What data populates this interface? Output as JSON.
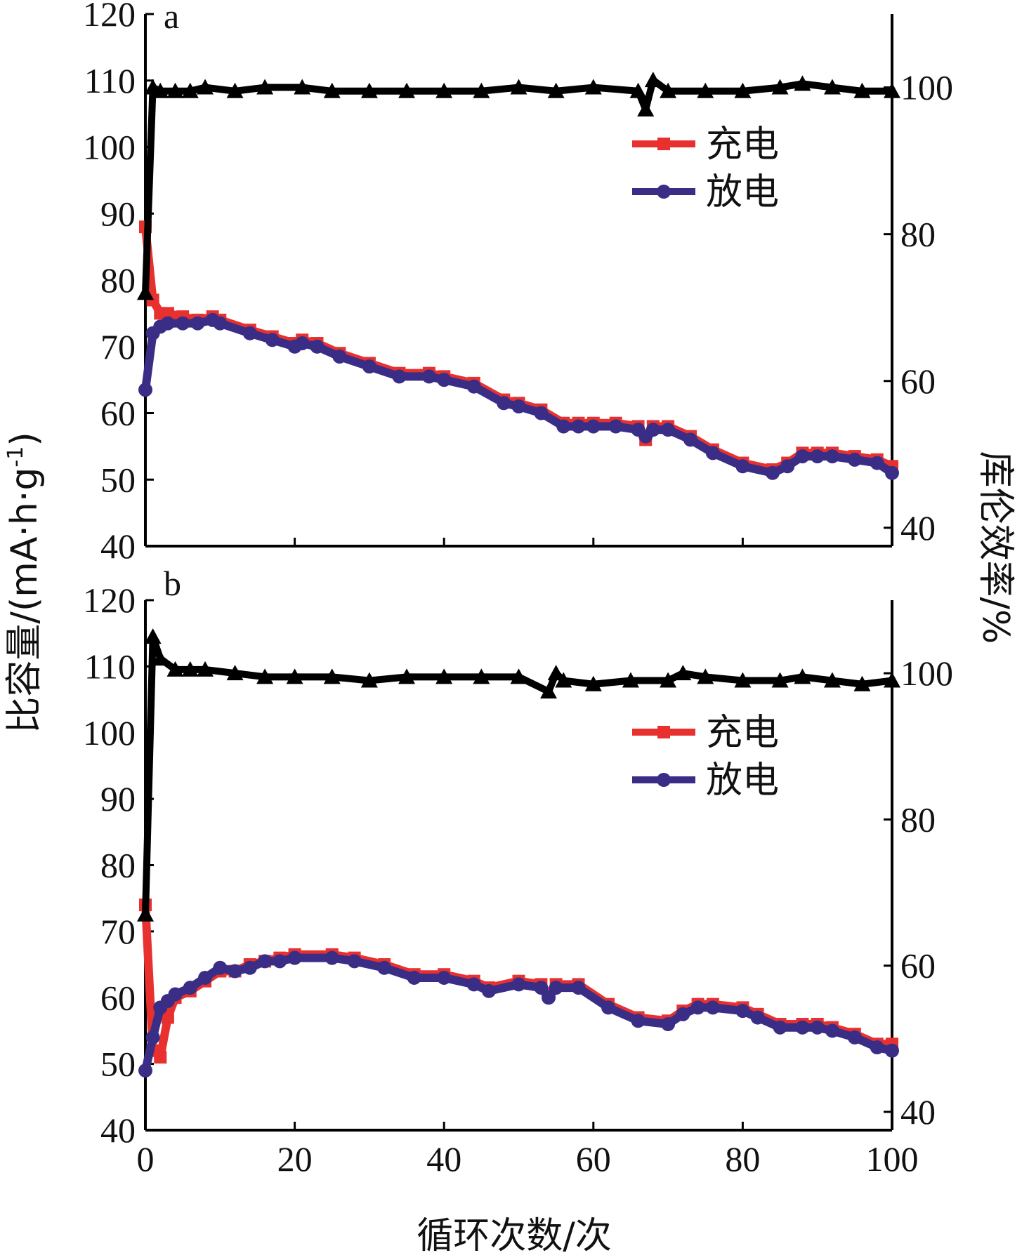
{
  "chart_data": {
    "type": "line",
    "xlabel": "循环次数/次",
    "ylabel_left": "比容量/(mA·h·g-1)",
    "ylabel_left_parts": [
      "比容量/(mA·h·g",
      "-1",
      ")"
    ],
    "ylabel_right": "库伦效率/%",
    "xlim": [
      0,
      100
    ],
    "xticks": [
      0,
      20,
      40,
      60,
      80,
      100
    ],
    "left_ylim": [
      40,
      120
    ],
    "left_yticks": [
      40,
      50,
      60,
      70,
      80,
      90,
      100,
      110,
      120
    ],
    "right_ylim": [
      37.5,
      110
    ],
    "right_yticks": [
      40,
      60,
      80,
      100
    ],
    "legend": {
      "placement": "upper-right",
      "entries": [
        "充电",
        "放电"
      ]
    },
    "colors": {
      "charge": "#e8312f",
      "discharge": "#3a2d86",
      "efficiency": "#000000",
      "axis": "#000000"
    },
    "panels": [
      {
        "label": "a",
        "series": [
          {
            "name": "充电",
            "axis": "left",
            "marker": "square",
            "x": [
              0,
              1,
              2,
              3,
              5,
              7,
              9,
              10,
              14,
              17,
              20,
              21,
              23,
              26,
              30,
              34,
              38,
              40,
              44,
              48,
              50,
              53,
              56,
              58,
              60,
              63,
              66,
              67,
              68,
              70,
              73,
              76,
              80,
              84,
              86,
              88,
              90,
              92,
              95,
              98,
              100
            ],
            "y": [
              88,
              77,
              75,
              75,
              74.5,
              74,
              74.5,
              74,
              72.5,
              71.5,
              70.5,
              71,
              70.5,
              69,
              67.5,
              66,
              66,
              65.5,
              64.5,
              62,
              61.5,
              60.5,
              58.5,
              58.5,
              58.5,
              58.5,
              58,
              56,
              58,
              58,
              56.5,
              54.5,
              52.5,
              51.5,
              52.5,
              54,
              54,
              54,
              53.5,
              53,
              52
            ]
          },
          {
            "name": "放电",
            "axis": "left",
            "marker": "circle",
            "x": [
              0,
              1,
              2,
              3,
              5,
              7,
              9,
              10,
              14,
              17,
              20,
              21,
              23,
              26,
              30,
              34,
              38,
              40,
              44,
              48,
              50,
              53,
              56,
              58,
              60,
              63,
              66,
              67,
              68,
              70,
              73,
              76,
              80,
              84,
              86,
              88,
              90,
              92,
              95,
              98,
              100
            ],
            "y": [
              63.5,
              72,
              73,
              73.5,
              73.5,
              73.5,
              74,
              73.5,
              72,
              71,
              70,
              70.5,
              70,
              68.5,
              67,
              65.5,
              65.5,
              65,
              64,
              61.5,
              61,
              60,
              58,
              58,
              58,
              58,
              57.5,
              56.5,
              57.5,
              57.5,
              56,
              54,
              52,
              51,
              52,
              53.5,
              53.5,
              53.5,
              53,
              52.5,
              51
            ]
          },
          {
            "name": "库伦效率",
            "axis": "right",
            "marker": "triangle",
            "x": [
              0,
              1,
              2,
              4,
              6,
              8,
              12,
              16,
              21,
              25,
              30,
              35,
              40,
              45,
              50,
              55,
              60,
              66,
              67,
              68,
              70,
              75,
              80,
              85,
              88,
              92,
              96,
              100
            ],
            "y": [
              72,
              100,
              99.5,
              99.5,
              99.5,
              100,
              99.5,
              100,
              100,
              99.5,
              99.5,
              99.5,
              99.5,
              99.5,
              100,
              99.5,
              100,
              99.5,
              97,
              101,
              99.5,
              99.5,
              99.5,
              100,
              100.5,
              100,
              99.5,
              99.5
            ]
          }
        ]
      },
      {
        "label": "b",
        "series": [
          {
            "name": "充电",
            "axis": "left",
            "marker": "square",
            "x": [
              0,
              1,
              2,
              3,
              4,
              6,
              8,
              10,
              12,
              14,
              16,
              18,
              20,
              25,
              28,
              32,
              36,
              40,
              44,
              46,
              50,
              53,
              54,
              55,
              58,
              62,
              66,
              70,
              72,
              74,
              76,
              80,
              82,
              85,
              88,
              90,
              92,
              95,
              98,
              100
            ],
            "y": [
              74,
              52,
              51,
              57,
              60,
              61,
              62.5,
              64,
              64,
              65,
              65.5,
              66,
              66.5,
              66.5,
              66,
              65,
              63.5,
              63.5,
              62.5,
              61.5,
              62.5,
              62,
              60.5,
              62,
              62,
              59,
              57,
              56.5,
              58,
              59,
              59,
              58.5,
              57.5,
              56,
              56,
              56,
              55.5,
              54.5,
              53,
              53
            ]
          },
          {
            "name": "放电",
            "axis": "left",
            "marker": "circle",
            "x": [
              0,
              1,
              2,
              3,
              4,
              6,
              8,
              10,
              12,
              14,
              16,
              18,
              20,
              25,
              28,
              32,
              36,
              40,
              44,
              46,
              50,
              53,
              54,
              55,
              58,
              62,
              66,
              70,
              72,
              74,
              76,
              80,
              82,
              85,
              88,
              90,
              92,
              95,
              98,
              100
            ],
            "y": [
              49,
              54,
              58.5,
              59.5,
              60.5,
              61.5,
              63,
              64.5,
              64,
              64.5,
              65.5,
              65.5,
              66,
              66,
              65.5,
              64.5,
              63,
              63,
              62,
              61,
              62,
              61.5,
              60,
              61.5,
              61.5,
              58.5,
              56.5,
              56,
              57.5,
              58.5,
              58.5,
              58,
              57,
              55.5,
              55.5,
              55.5,
              55,
              54,
              52.5,
              52
            ]
          },
          {
            "name": "库伦效率",
            "axis": "right",
            "marker": "triangle",
            "x": [
              0,
              1,
              2,
              4,
              6,
              8,
              12,
              16,
              20,
              25,
              30,
              35,
              40,
              45,
              50,
              54,
              55,
              56,
              60,
              65,
              70,
              72,
              75,
              80,
              85,
              88,
              92,
              96,
              100
            ],
            "y": [
              67,
              105,
              102,
              100.5,
              100.5,
              100.5,
              100,
              99.5,
              99.5,
              99.5,
              99,
              99.5,
              99.5,
              99.5,
              99.5,
              97.5,
              100,
              99,
              98.5,
              99,
              99,
              100,
              99.5,
              99,
              99,
              99.5,
              99,
              98.5,
              99
            ]
          }
        ]
      }
    ]
  }
}
